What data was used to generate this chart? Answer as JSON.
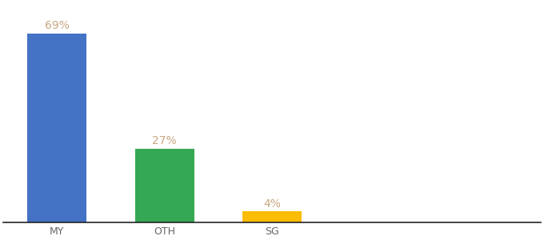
{
  "categories": [
    "MY",
    "OTH",
    "SG"
  ],
  "values": [
    69,
    27,
    4
  ],
  "bar_colors": [
    "#4472C4",
    "#34A853",
    "#FBBC04"
  ],
  "labels": [
    "69%",
    "27%",
    "4%"
  ],
  "ylim": [
    0,
    80
  ],
  "label_color": "#C8A882",
  "label_fontsize": 10,
  "tick_fontsize": 9,
  "background_color": "#ffffff",
  "bar_width": 0.55,
  "xlim_left": -0.5,
  "xlim_right": 4.5
}
